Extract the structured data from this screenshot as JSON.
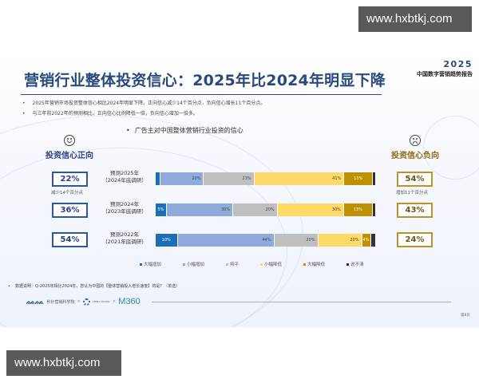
{
  "watermark": {
    "top": "www.hxbtkj.com",
    "bottom": "www.hxbtkj.com"
  },
  "header": {
    "title": "营销行业整体投资信心：2025年比2024年明显下降",
    "brand_year": "2025",
    "brand_name": "中国数字营销趋势报告"
  },
  "bullets": [
    "2025年营销市场投资整体信心相比2024年明显下降，正向信心减少14个百分点，负向信心增长11个百分点。",
    "与三年前2022年的预测相比，正向信心比例降低一倍，负向信心增加一倍多。"
  ],
  "positive": {
    "title": "投资信心正向",
    "icon": "smiley-face-icon",
    "values": [
      "22%",
      "36%",
      "54%"
    ],
    "note": "减少14个百分点"
  },
  "negative": {
    "title": "投资信心负向",
    "icon": "sad-face-icon",
    "values": [
      "54%",
      "43%",
      "24%"
    ],
    "note": "增加11个百分点"
  },
  "rows": [
    {
      "line1": "预测2025年",
      "line2": "（2024年底调研）"
    },
    {
      "line1": "预测2024年",
      "line2": "（2023年底调研）"
    },
    {
      "line1": "预测2022年",
      "line2": "（2021年底调研）"
    }
  ],
  "colors": {
    "big_increase": "#1b6fb8",
    "small_increase": "#8faadc",
    "flat": "#bfbfbf",
    "small_decrease": "#ffd966",
    "big_decrease": "#bf9000",
    "unclear": "#333333",
    "title": "#2a4a7b"
  },
  "chart_data": {
    "type": "bar",
    "orientation": "horizontal-stacked-100",
    "title": "广告主对中国整体营销行业投资的信心",
    "categories": [
      "预测2025年（2024年底调研）",
      "预测2024年（2023年底调研）",
      "预测2022年（2021年底调研）"
    ],
    "series": [
      {
        "name": "大幅增加",
        "values": [
          2,
          5,
          10
        ],
        "labels": [
          "",
          "5%",
          "10%"
        ]
      },
      {
        "name": "小幅增加",
        "values": [
          20,
          30,
          44
        ],
        "labels": [
          "20%",
          "30%",
          "44%"
        ]
      },
      {
        "name": "持平",
        "values": [
          23,
          20,
          20
        ],
        "labels": [
          "23%",
          "20%",
          "20%"
        ]
      },
      {
        "name": "小幅降低",
        "values": [
          41,
          30,
          20
        ],
        "labels": [
          "41%",
          "30%",
          "20%"
        ]
      },
      {
        "name": "大幅降低",
        "values": [
          13,
          13,
          4
        ],
        "labels": [
          "13%",
          "13%",
          "4%"
        ]
      },
      {
        "name": "说不清",
        "values": [
          1,
          1,
          2
        ],
        "labels": [
          "",
          "",
          ""
        ]
      }
    ],
    "legend_position": "bottom",
    "grid": false
  },
  "legend": [
    "大幅增加",
    "小幅增加",
    "持平",
    "小幅降低",
    "大幅降低",
    "说不清"
  ],
  "footnote": "数据说明：Q-2025年相比2024年，您认为中国的【整体营销投入增长速度】将是？（单选）",
  "footer": {
    "logo1_text": "秒针营销科学院",
    "sep": "×",
    "logo2_text": "CHINA DIGITAL",
    "logo3_text": "M360",
    "page": "第8页"
  }
}
